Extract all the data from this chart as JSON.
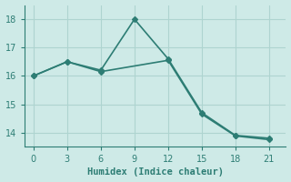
{
  "line1_x": [
    0,
    3,
    6,
    9,
    12,
    15,
    18,
    21
  ],
  "line1_y": [
    16.0,
    16.5,
    16.2,
    18.0,
    16.6,
    14.7,
    13.9,
    13.8
  ],
  "line2_x": [
    0,
    3,
    6,
    12,
    15,
    18,
    21
  ],
  "line2_y": [
    16.0,
    16.5,
    16.15,
    16.55,
    14.65,
    13.88,
    13.75
  ],
  "line_color": "#2d7d74",
  "bg_color": "#ceeae7",
  "grid_color": "#aed4d0",
  "xlabel": "Humidex (Indice chaleur)",
  "xlim": [
    -0.8,
    22.5
  ],
  "ylim": [
    13.5,
    18.5
  ],
  "xticks": [
    0,
    3,
    6,
    9,
    12,
    15,
    18,
    21
  ],
  "yticks": [
    14,
    15,
    16,
    17,
    18
  ],
  "marker": "D",
  "markersize": 3,
  "linewidth": 1.2
}
